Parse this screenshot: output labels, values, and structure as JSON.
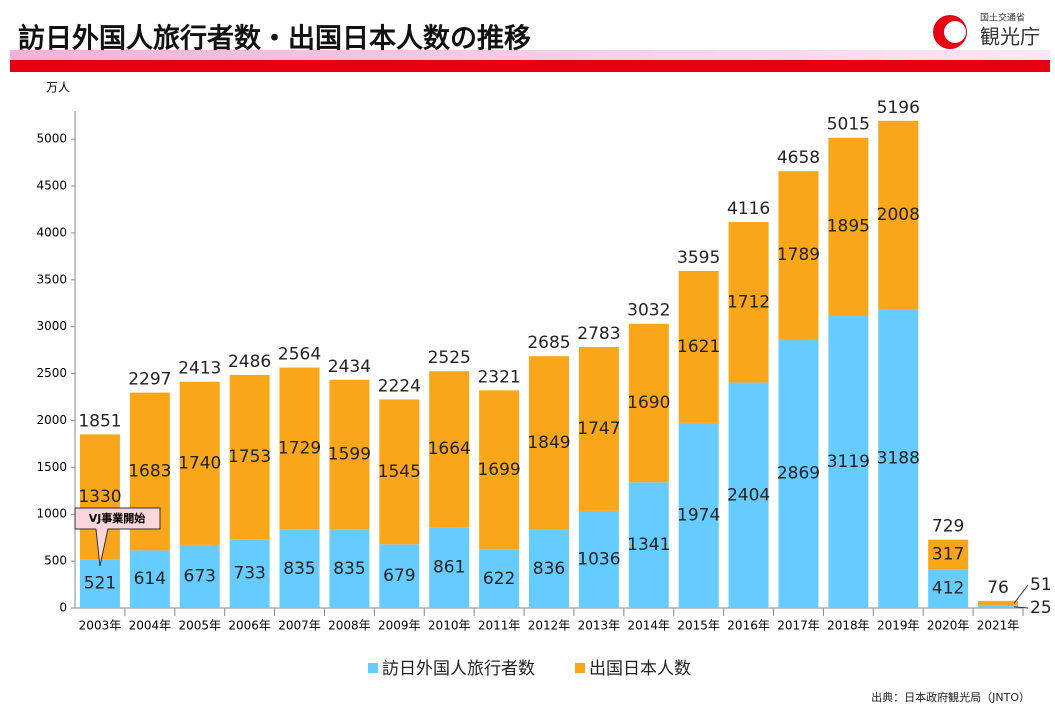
{
  "header": {
    "title": "訪日外国人旅行者数・出国日本人数の推移",
    "ministry": "国土交通省",
    "agency": "観光庁"
  },
  "chart_data": {
    "type": "stacked-bar",
    "y_label": "万人",
    "categories": [
      "2003年",
      "2004年",
      "2005年",
      "2006年",
      "2007年",
      "2008年",
      "2009年",
      "2010年",
      "2011年",
      "2012年",
      "2013年",
      "2014年",
      "2015年",
      "2016年",
      "2017年",
      "2018年",
      "2019年",
      "2020年",
      "2021年"
    ],
    "series": [
      {
        "name": "訪日外国人旅行者数",
        "color": "#66ccff",
        "values": [
          521,
          614,
          673,
          733,
          835,
          835,
          679,
          861,
          622,
          836,
          1036,
          1341,
          1974,
          2404,
          2869,
          3119,
          3188,
          412,
          25
        ]
      },
      {
        "name": "出国日本人数",
        "color": "#f9a61a",
        "values": [
          1330,
          1683,
          1740,
          1753,
          1729,
          1599,
          1545,
          1664,
          1699,
          1849,
          1747,
          1690,
          1621,
          1712,
          1789,
          1895,
          2008,
          317,
          51
        ]
      }
    ],
    "totals": [
      1851,
      2297,
      2413,
      2486,
      2564,
      2434,
      2224,
      2525,
      2321,
      2685,
      2783,
      3032,
      3595,
      4116,
      4658,
      5015,
      5196,
      729,
      76
    ],
    "ylim": [
      0,
      5300
    ],
    "yticks": [
      0,
      500,
      1000,
      1500,
      2000,
      2500,
      3000,
      3500,
      4000,
      4500,
      5000
    ],
    "grid": false,
    "legend": "bottom",
    "annotation": {
      "text": "VJ事業開始",
      "category_index": 0
    },
    "source": "出典：日本政府観光局（JNTO）"
  }
}
